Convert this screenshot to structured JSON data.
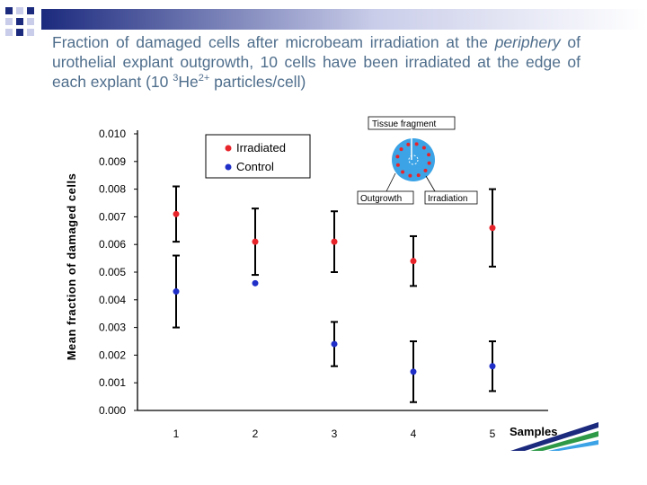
{
  "slide": {
    "title_pre": "Fraction of damaged cells after microbeam irradiation at the ",
    "title_em": "periphery",
    "title_mid": " of urothelial explant outgrowth, 10 cells have been irradiated at the edge of each explant (10 ",
    "title_sup1": "3",
    "title_he": "He",
    "title_sup2": "2+",
    "title_post": " particles/cell)"
  },
  "colors": {
    "title": "#4f6e8c",
    "irradiated": "#e8242b",
    "control": "#1f2fc8",
    "inset_fragment": "#3ba3e6",
    "deco_navy": "#1c2a7e",
    "deco_band_light": "#c9cde9"
  },
  "chart_data": {
    "type": "scatter",
    "x": [
      1,
      2,
      3,
      4,
      5
    ],
    "xticks": [
      "1",
      "2",
      "3",
      "4",
      "5"
    ],
    "xlabel": "Samples",
    "ylabel": "Mean fraction of damaged cells",
    "ylim": [
      0,
      0.01
    ],
    "yticks": [
      "0.000",
      "0.001",
      "0.002",
      "0.003",
      "0.004",
      "0.005",
      "0.006",
      "0.007",
      "0.008",
      "0.009",
      "0.010"
    ],
    "grid": false,
    "legend": "top-left",
    "series": [
      {
        "name": "Irradiated",
        "color": "#e8242b",
        "values": [
          0.0071,
          0.0061,
          0.0061,
          0.0054,
          0.0066
        ],
        "err_low": [
          0.0061,
          0.0049,
          0.005,
          0.0045,
          0.0052
        ],
        "err_high": [
          0.0081,
          0.0073,
          0.0072,
          0.0063,
          0.008
        ]
      },
      {
        "name": "Control",
        "color": "#1f2fc8",
        "values": [
          0.0043,
          0.0046,
          0.0024,
          0.0014,
          0.0016
        ],
        "err_low": [
          0.003,
          null,
          0.0016,
          0.0003,
          0.0007
        ],
        "err_high": [
          0.0056,
          null,
          0.0032,
          0.0025,
          0.0025
        ]
      }
    ],
    "inset": {
      "labels": [
        "Tissue fragment",
        "Outgrowth",
        "Irradiation"
      ]
    }
  }
}
